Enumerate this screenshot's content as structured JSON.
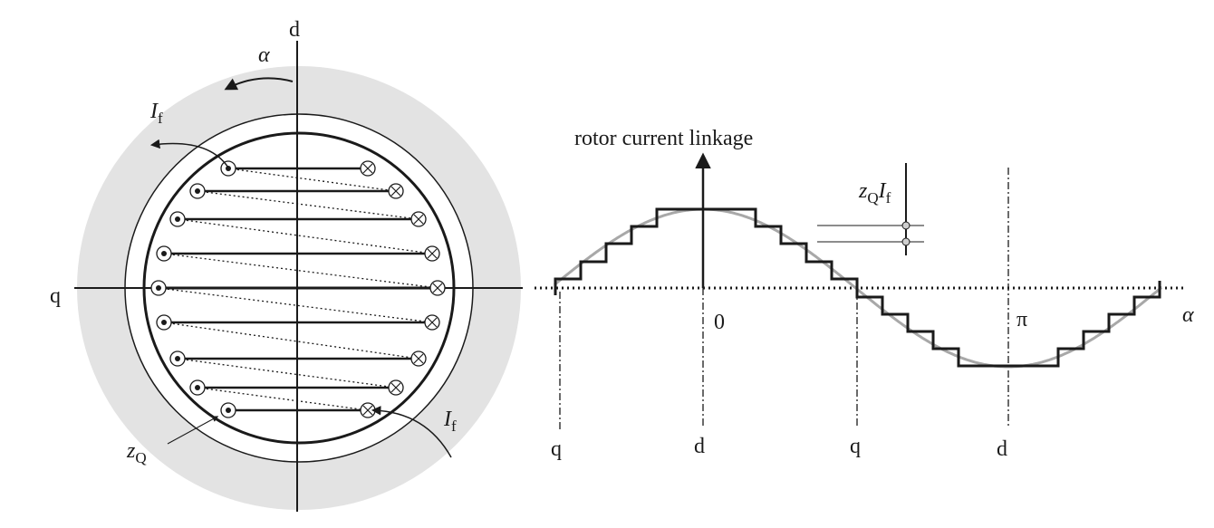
{
  "left_panel": {
    "axis_d_label": "d",
    "axis_q_label": "q",
    "angle_label": "α",
    "current_top_label_main": "I",
    "current_top_label_sub": "f",
    "current_bottom_label_main": "I",
    "current_bottom_label_sub": "f",
    "conductor_count_label_main": "z",
    "conductor_count_label_sub": "Q",
    "coil_rows": 9
  },
  "right_panel": {
    "y_axis_title": "rotor current linkage",
    "step_label_z": "z",
    "step_label_z_sub": "Q",
    "step_label_i": "I",
    "step_label_i_sub": "f",
    "origin_label": "0",
    "pi_label": "π",
    "x_axis_label": "α",
    "bottom_labels": [
      "q",
      "d",
      "q",
      "d"
    ]
  },
  "colors": {
    "stator_fill": "#e3e3e3",
    "ink": "#1a1a1a",
    "sine": "#a8a8a8"
  }
}
